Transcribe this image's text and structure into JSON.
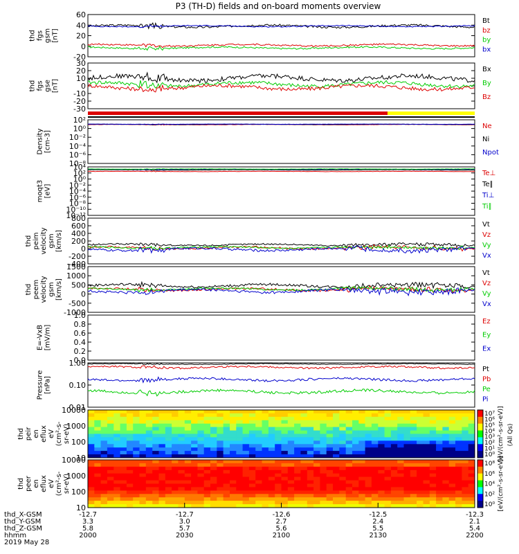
{
  "title": "P3 (TH-D) fields and on-board moments overview",
  "colors": {
    "black": "#000000",
    "red": "#dd0000",
    "green": "#00cc00",
    "blue": "#0000cc",
    "yellow": "#ffff00"
  },
  "chart_data": [
    {
      "id": "fgs-gsm-mag",
      "type": "line",
      "ylabel": [
        "thd",
        "fgs",
        "gsm",
        "[nT]"
      ],
      "ylim": [
        -20,
        60
      ],
      "yticks": [
        "60",
        "40",
        "20",
        "0",
        "-20"
      ],
      "series": [
        {
          "name": "Bt",
          "color": "black",
          "base": 38,
          "amp": 4
        },
        {
          "name": "bz",
          "color": "red",
          "base": 2,
          "amp": 3
        },
        {
          "name": "by",
          "color": "green",
          "base": -3,
          "amp": 3
        },
        {
          "name": "bx",
          "color": "blue",
          "base": 38,
          "amp": 2
        }
      ]
    },
    {
      "id": "fgs-gse-mag",
      "type": "line",
      "ylabel": [
        "thd",
        "fgs",
        "gse",
        "[nT]"
      ],
      "ylim": [
        -30,
        30
      ],
      "yticks": [
        "30",
        "20",
        "10",
        "0",
        "-10",
        "-20",
        "-30"
      ],
      "series": [
        {
          "name": "Bx",
          "color": "black",
          "base": 10,
          "amp": 6
        },
        {
          "name": "By",
          "color": "green",
          "base": 2,
          "amp": 5
        },
        {
          "name": "Bz",
          "color": "red",
          "base": -2,
          "amp": 5
        }
      ]
    },
    {
      "id": "density",
      "type": "line",
      "log": true,
      "ylabel": [
        "Density",
        "[cm-3]"
      ],
      "ylim_exp": [
        -8,
        2
      ],
      "yticks": [
        "10²",
        "10⁰",
        "10⁻²",
        "10⁻⁴",
        "10⁻⁶",
        "10⁻⁸"
      ],
      "series": [
        {
          "name": "Ne",
          "color": "red",
          "base": 0.9,
          "amp": 0.08
        },
        {
          "name": "Ni",
          "color": "black",
          "base": 0.95,
          "amp": 0.06
        },
        {
          "name": "Npot",
          "color": "blue",
          "base": 1.0,
          "amp": 0.05
        }
      ]
    },
    {
      "id": "temperature",
      "type": "line",
      "log": true,
      "ylabel": [
        "moqt3",
        "[eV]"
      ],
      "ylim_exp": [
        -12,
        4
      ],
      "yticks": [
        "10⁴",
        "10²",
        "10⁰",
        "10⁻²",
        "10⁻⁴",
        "10⁻⁶",
        "10⁻⁸",
        "10⁻¹⁰",
        "10⁻¹²"
      ],
      "series": [
        {
          "name": "Te⊥",
          "color": "red",
          "base": 2.5,
          "amp": 0.1
        },
        {
          "name": "Te∥",
          "color": "black",
          "base": 3.0,
          "amp": 0.1
        },
        {
          "name": "Ti⊥",
          "color": "blue",
          "base": 3.2,
          "amp": 0.1
        },
        {
          "name": "Ti∥",
          "color": "green",
          "base": 3.3,
          "amp": 0.08
        }
      ]
    },
    {
      "id": "peim-velocity",
      "type": "line",
      "ylabel": [
        "thd",
        "peim",
        "velocity",
        "gsm",
        "[km/s]"
      ],
      "ylim": [
        -400,
        800
      ],
      "yticks": [
        "800",
        "600",
        "400",
        "200",
        "0",
        "-200",
        "-400"
      ],
      "series": [
        {
          "name": "Vt",
          "color": "black",
          "base": 100,
          "amp": 40
        },
        {
          "name": "Vz",
          "color": "red",
          "base": 20,
          "amp": 50
        },
        {
          "name": "Vy",
          "color": "green",
          "base": 30,
          "amp": 40
        },
        {
          "name": "Vx",
          "color": "blue",
          "base": -20,
          "amp": 60
        }
      ]
    },
    {
      "id": "peem-velocity",
      "type": "line",
      "ylabel": [
        "thd",
        "peem",
        "velocity",
        "gsm",
        "[km/s]"
      ],
      "ylim": [
        -1500,
        1500
      ],
      "yticks": [
        "1500",
        "1000",
        "500",
        "0",
        "-500",
        "-1000"
      ],
      "series": [
        {
          "name": "Vt",
          "color": "black",
          "base": 250,
          "amp": 160
        },
        {
          "name": "Vz",
          "color": "red",
          "base": 0,
          "amp": 140
        },
        {
          "name": "Vy",
          "color": "green",
          "base": 30,
          "amp": 120
        },
        {
          "name": "Vx",
          "color": "blue",
          "base": -100,
          "amp": 180
        }
      ]
    },
    {
      "id": "efield",
      "type": "line",
      "ylabel": [
        "E=-VxB",
        "[mV/m]"
      ],
      "ylim": [
        0,
        1
      ],
      "yticks": [
        "1.0",
        "0.8",
        "0.6",
        "0.4",
        "0.2",
        "0.0"
      ],
      "series": [
        {
          "name": "Ez",
          "color": "red"
        },
        {
          "name": "Ey",
          "color": "green"
        },
        {
          "name": "Ex",
          "color": "blue"
        }
      ]
    },
    {
      "id": "pressure",
      "type": "line",
      "log": true,
      "ylabel": [
        "Pressure",
        "[nPa]"
      ],
      "ylim_exp": [
        -2,
        0
      ],
      "yticks": [
        "1.00",
        "0.10",
        "0.01"
      ],
      "series": [
        {
          "name": "Pt",
          "color": "black",
          "base": -0.05,
          "amp": 0.03
        },
        {
          "name": "Pb",
          "color": "red",
          "base": -0.2,
          "amp": 0.08
        },
        {
          "name": "Pe",
          "color": "green",
          "base": -1.3,
          "amp": 0.12
        },
        {
          "name": "Pi",
          "color": "blue",
          "base": -0.75,
          "amp": 0.1
        }
      ]
    },
    {
      "id": "peir-eflux",
      "type": "heatmap",
      "ylabel": [
        "thd",
        "peir",
        "en",
        "eflux",
        "eV",
        "(cm²-s-",
        "sr-eV)"
      ],
      "yticks": [
        "10000",
        "1000",
        "100",
        "10"
      ],
      "colorbar": {
        "label": "[eV/(cm²-s-sr-eV)]",
        "ticks": [
          "10⁷",
          "10⁶",
          "10⁵",
          "10⁴",
          "10³",
          "10²",
          "10¹",
          "10⁰"
        ]
      }
    },
    {
      "id": "peer-eflux",
      "type": "heatmap",
      "ylabel": [
        "thd",
        "peer",
        "en",
        "eflux",
        "eV",
        "(cm²-s-",
        "sr-eV)"
      ],
      "yticks": [
        "10000",
        "1000",
        "100",
        "10"
      ],
      "colorbar": {
        "label": "[eV/(cm²-s-sr-eV)]",
        "ticks": [
          "10⁸",
          "10⁶",
          "10⁴",
          "10²",
          "10⁰"
        ]
      }
    }
  ],
  "colorbar_label_shared": "(All Qs)",
  "x_axis": {
    "rows": [
      {
        "label": "thd_X-GSM",
        "values": [
          "-12.7",
          "-12.7",
          "-12.6",
          "-12.5",
          "-12.3"
        ]
      },
      {
        "label": "thd_Y-GSM",
        "values": [
          "3.3",
          "3.0",
          "2.7",
          "2.4",
          "2.1"
        ]
      },
      {
        "label": "thd_Z-GSM",
        "values": [
          "5.8",
          "5.7",
          "5.6",
          "5.5",
          "5.4"
        ]
      },
      {
        "label": "hhmm",
        "values": [
          "2000",
          "2030",
          "2100",
          "2130",
          "2200"
        ]
      }
    ],
    "date": "2019 May 28"
  }
}
